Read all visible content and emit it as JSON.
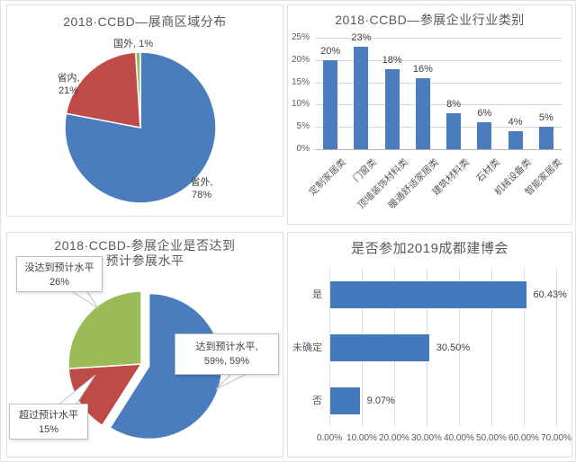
{
  "colors": {
    "blue": "#4A7CBE",
    "red": "#BE4B48",
    "green": "#9BBB59",
    "title_gray": "#595959",
    "gridline": "#d9d9d9"
  },
  "chart_data": [
    {
      "id": "region-pie",
      "type": "pie",
      "title": "2018·CCBD—展商区域分布",
      "slices": [
        {
          "key": "shengwai",
          "label": "省外",
          "value": 78,
          "pct": "78%",
          "color": "#4A7CBE",
          "label_lines": [
            "省外,",
            "78%"
          ]
        },
        {
          "key": "shengnei",
          "label": "省内",
          "value": 21,
          "pct": "21%",
          "color": "#BE4B48",
          "label_lines": [
            "省内,",
            "21%"
          ]
        },
        {
          "key": "guowai",
          "label": "国外",
          "value": 1,
          "pct": "1%",
          "color": "#9BBB59",
          "label_lines": [
            "国外, 1%"
          ]
        }
      ]
    },
    {
      "id": "industry-bar",
      "type": "bar",
      "title": "2018·CCBD—参展企业行业类别",
      "categories": [
        "定制家居类",
        "门窗类",
        "顶墙装饰材料类",
        "暖通舒适家居类",
        "建筑材料类",
        "石材类",
        "机械设备类",
        "智能家居类"
      ],
      "values": [
        20,
        23,
        18,
        16,
        8,
        6,
        4,
        5
      ],
      "value_labels": [
        "20%",
        "23%",
        "18%",
        "16%",
        "8%",
        "6%",
        "4%",
        "5%"
      ],
      "y_ticks": [
        "25%",
        "20%",
        "15%",
        "10%",
        "5%",
        "0%"
      ],
      "ylim": [
        0,
        25
      ],
      "bar_color": "#4A7CBE",
      "grid": "horizontal"
    },
    {
      "id": "expectation-pie",
      "type": "pie",
      "title_lines": [
        "2018·CCBD-参展企业是否达到",
        "预计参展水平"
      ],
      "slices": [
        {
          "key": "reached",
          "label": "达到预计水平",
          "value": 59,
          "pct": "59%",
          "color": "#4A7CBE",
          "exploded": true,
          "callout_lines": [
            "达到预计水平,",
            "59%, 59%"
          ]
        },
        {
          "key": "exceeded",
          "label": "超过预计水平",
          "value": 15,
          "pct": "15%",
          "color": "#BE4B48",
          "callout_lines": [
            "超过预计水平",
            "15%"
          ]
        },
        {
          "key": "notreached",
          "label": "没达到预计水平",
          "value": 26,
          "pct": "26%",
          "color": "#9BBB59",
          "callout_lines": [
            "没达到预计水平",
            "26%"
          ]
        }
      ]
    },
    {
      "id": "attend-2019-hbar",
      "type": "hbar",
      "title": "是否参加2019成都建博会",
      "categories": [
        "是",
        "未确定",
        "否"
      ],
      "values": [
        60.43,
        30.5,
        9.07
      ],
      "value_labels": [
        "60.43%",
        "30.50%",
        "9.07%"
      ],
      "x_ticks": [
        "0.00%",
        "10.00%",
        "20.00%",
        "30.00%",
        "40.00%",
        "50.00%",
        "60.00%",
        "70.00%"
      ],
      "xlim": [
        0,
        70
      ],
      "bar_color": "#4478BD",
      "grid": "vertical"
    }
  ]
}
